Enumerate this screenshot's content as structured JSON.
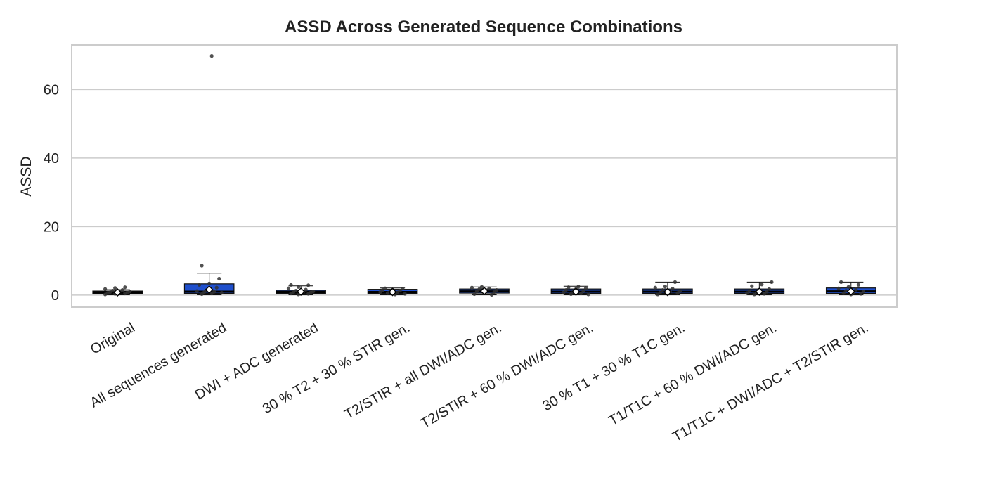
{
  "chart_data": {
    "type": "box",
    "title": "ASSD Across Generated Sequence Combinations",
    "xlabel": "",
    "ylabel": "ASSD",
    "ylim": [
      -3.5,
      73
    ],
    "yticks": [
      0,
      20,
      40,
      60
    ],
    "grid": "horizontal",
    "legend": "none",
    "colors": {
      "box": "#1f4fcc",
      "box_edge": "#111111",
      "mean_marker": "#ffffff",
      "point": "#333333",
      "grid": "#cccccc"
    },
    "categories": [
      "Original",
      "All sequences generated",
      "DWI + ADC generated",
      "30 % T2 + 30 % STIR gen.",
      "T2/STIR + all DWI/ADC gen.",
      "T2/STIR + 60 % DWI/ADC gen.",
      "30 % T1 + 30 % T1C gen.",
      "T1/T1C + 60 % DWI/ADC gen.",
      "T1/T1C + DWI/ADC + T2/STIR gen."
    ],
    "boxes": [
      {
        "q1": 0.4,
        "median": 0.8,
        "q3": 1.2,
        "whisker_low": 0.1,
        "whisker_high": 1.6,
        "mean": 0.8,
        "points": [
          0.2,
          0.4,
          0.5,
          0.6,
          0.7,
          0.8,
          0.9,
          1.0,
          1.1,
          1.3,
          1.5,
          1.8,
          2.1,
          2.3
        ]
      },
      {
        "q1": 0.5,
        "median": 1.0,
        "q3": 3.3,
        "whisker_low": 0.1,
        "whisker_high": 6.4,
        "mean": 1.6,
        "points": [
          0.3,
          0.5,
          0.7,
          0.9,
          1.0,
          1.2,
          1.5,
          2.2,
          3.0,
          3.4,
          4.8,
          8.6,
          69.8
        ]
      },
      {
        "q1": 0.5,
        "median": 0.9,
        "q3": 1.4,
        "whisker_low": 0.1,
        "whisker_high": 2.7,
        "mean": 1.0,
        "points": [
          0.2,
          0.4,
          0.5,
          0.7,
          0.8,
          0.9,
          1.0,
          1.1,
          1.3,
          1.6,
          2.0,
          2.4,
          2.9,
          3.0
        ]
      },
      {
        "q1": 0.5,
        "median": 0.9,
        "q3": 1.7,
        "whisker_low": 0.1,
        "whisker_high": 2.1,
        "mean": 0.9,
        "points": [
          0.2,
          0.4,
          0.6,
          0.8,
          0.9,
          1.1,
          1.3,
          1.5,
          1.7,
          1.9,
          2.0
        ]
      },
      {
        "q1": 0.6,
        "median": 1.1,
        "q3": 1.8,
        "whisker_low": 0.1,
        "whisker_high": 2.4,
        "mean": 1.2,
        "points": [
          0.1,
          0.3,
          0.6,
          0.9,
          1.1,
          1.3,
          1.5,
          1.8,
          2.0,
          2.2,
          2.4
        ]
      },
      {
        "q1": 0.5,
        "median": 1.0,
        "q3": 1.8,
        "whisker_low": 0.1,
        "whisker_high": 2.6,
        "mean": 1.0,
        "points": [
          0.2,
          0.3,
          0.5,
          0.8,
          1.0,
          1.2,
          1.5,
          1.8,
          2.0,
          2.3,
          2.5
        ]
      },
      {
        "q1": 0.5,
        "median": 1.0,
        "q3": 1.8,
        "whisker_low": 0.1,
        "whisker_high": 3.8,
        "mean": 0.9,
        "points": [
          0.2,
          0.4,
          0.6,
          0.8,
          1.0,
          1.2,
          1.5,
          1.9,
          2.2,
          2.5,
          3.8
        ]
      },
      {
        "q1": 0.5,
        "median": 1.0,
        "q3": 1.8,
        "whisker_low": 0.1,
        "whisker_high": 3.8,
        "mean": 1.0,
        "points": [
          0.2,
          0.4,
          0.6,
          0.8,
          1.0,
          1.2,
          1.5,
          1.8,
          2.6,
          3.1,
          3.8
        ]
      },
      {
        "q1": 0.5,
        "median": 1.1,
        "q3": 2.1,
        "whisker_low": 0.1,
        "whisker_high": 3.8,
        "mean": 1.1,
        "points": [
          0.2,
          0.4,
          0.6,
          0.9,
          1.1,
          1.3,
          1.6,
          2.0,
          2.4,
          3.0,
          3.8
        ]
      }
    ]
  }
}
